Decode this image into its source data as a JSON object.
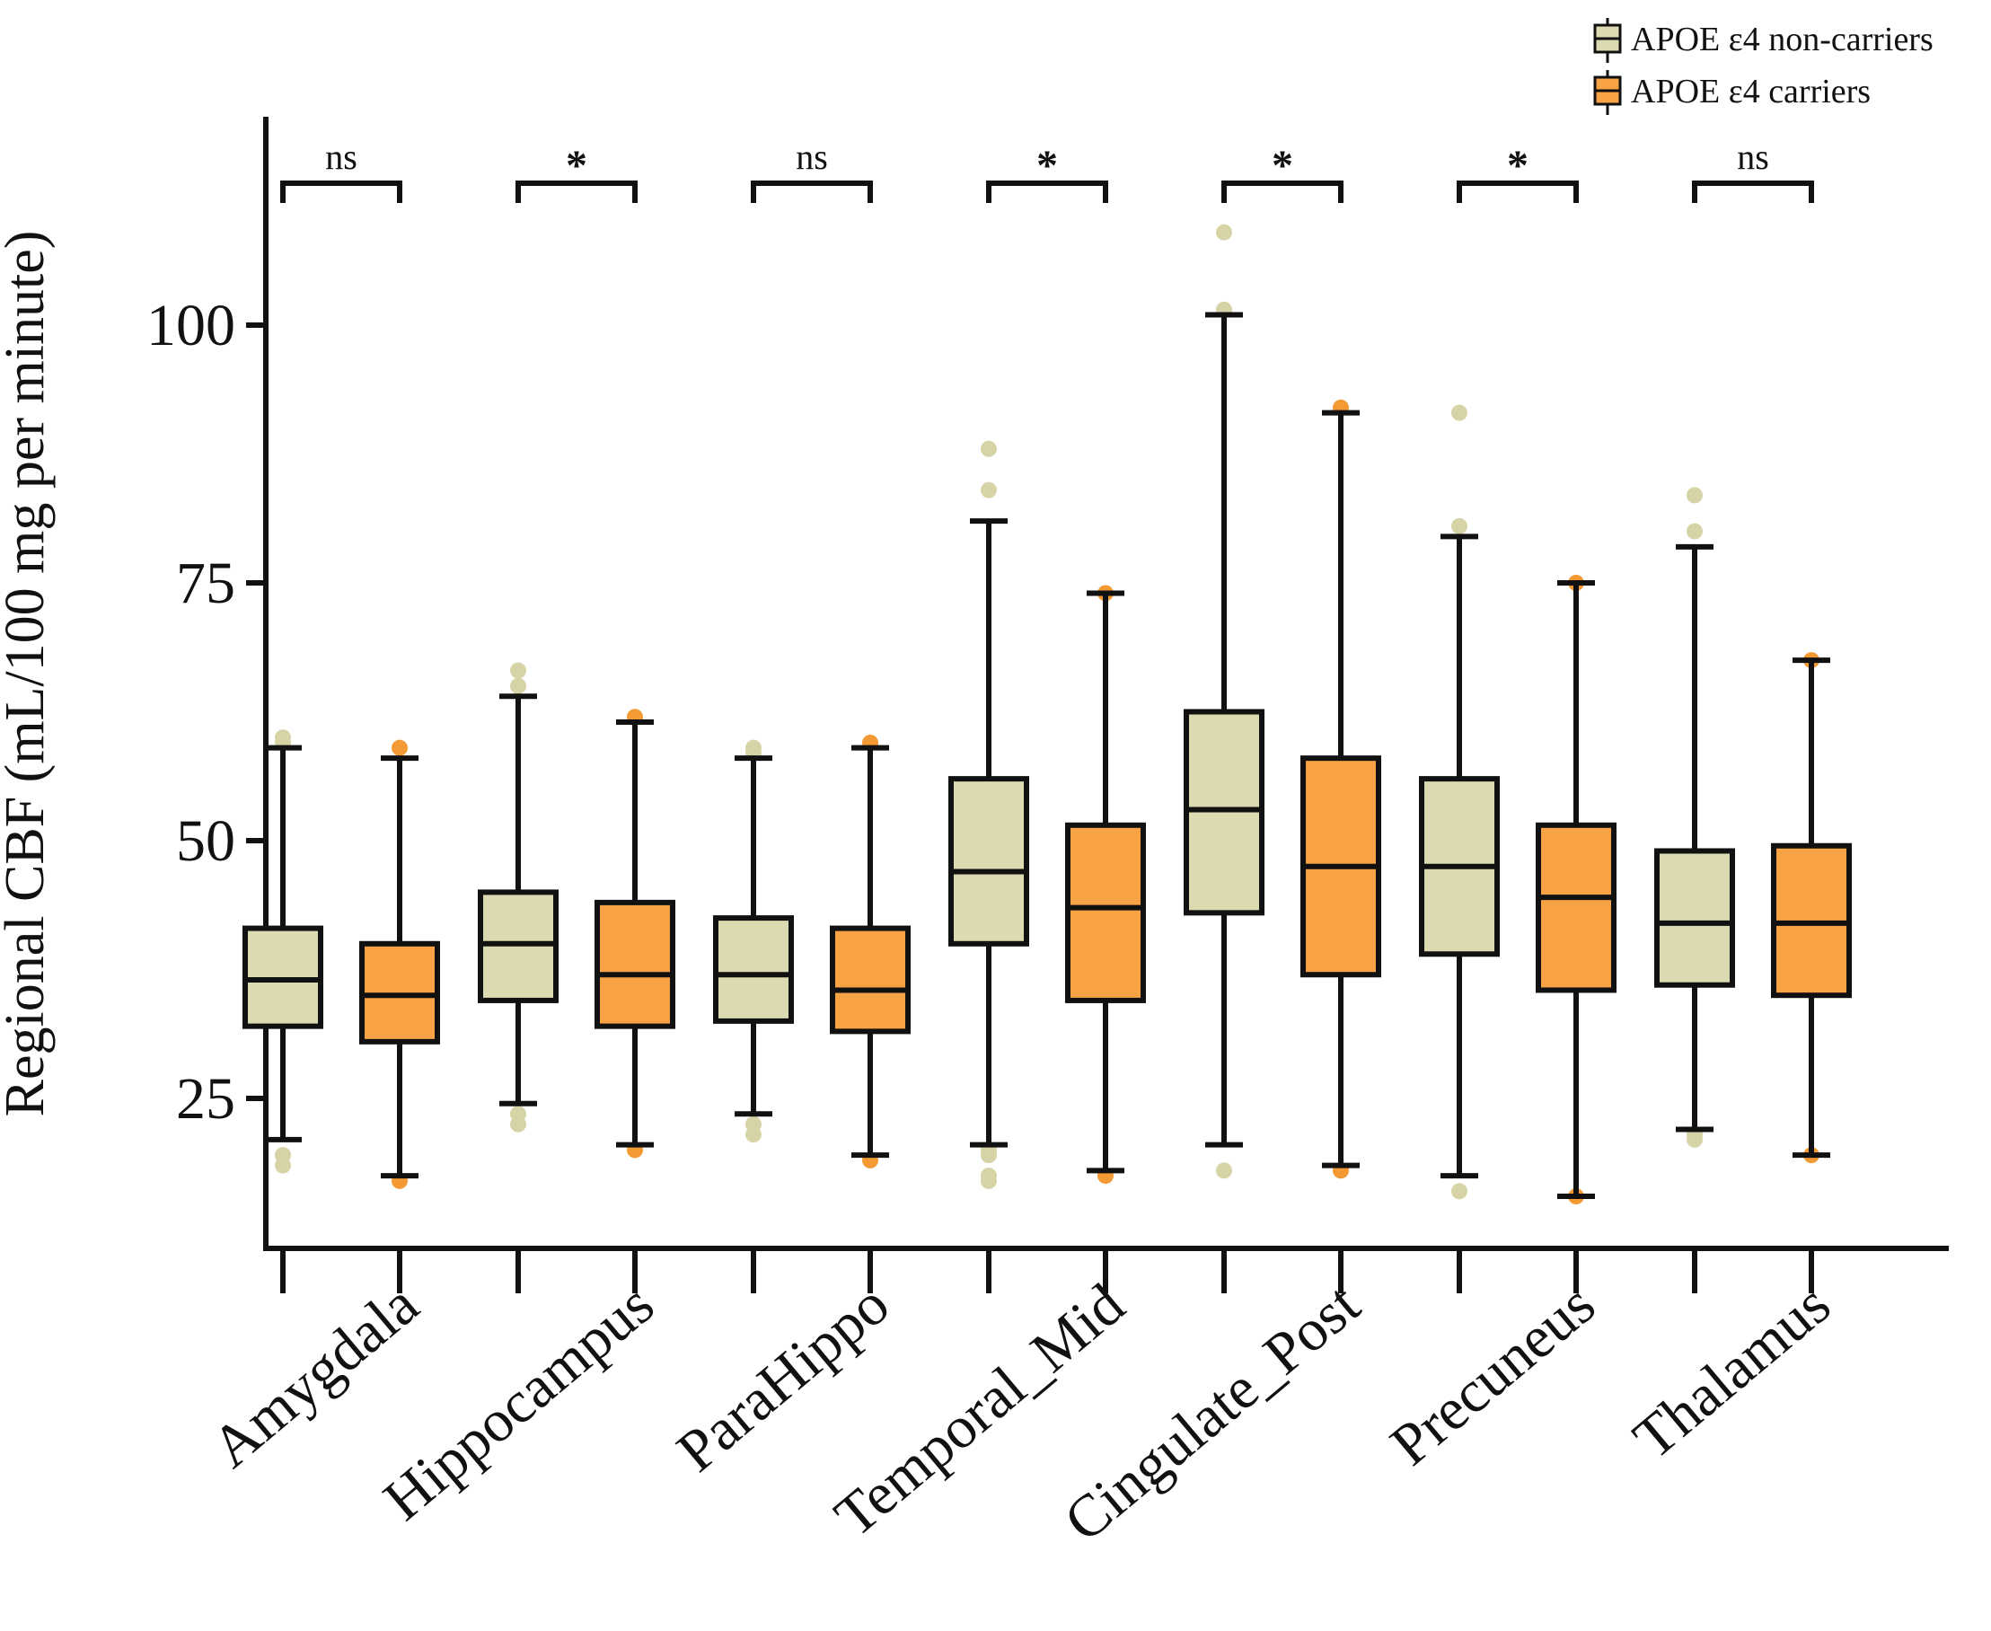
{
  "chart_data": {
    "type": "boxplot",
    "title": "",
    "ylabel": "Regional CBF (mL/100 mg per minute)",
    "xlabel": "",
    "ylim": [
      10,
      120
    ],
    "yticks": [
      25,
      50,
      75,
      100
    ],
    "legend_position": "top-right",
    "categories": [
      "Amygdala",
      "Hippocampus",
      "ParaHippo",
      "Temporal_Mid",
      "Cingulate_Post",
      "Precuneus",
      "Thalamus"
    ],
    "significance": [
      "ns",
      "*",
      "ns",
      "*",
      "*",
      "*",
      "ns"
    ],
    "series": [
      {
        "name": "APOE ε4 non-carriers",
        "color": "#dcdab0",
        "outlier_color": "#d6d3a6",
        "boxes": [
          {
            "whisker_low": 21,
            "q1": 32,
            "median": 36.5,
            "q3": 41.5,
            "whisker_high": 59,
            "outliers": [
              18.5,
              19.5,
              59.5,
              60
            ]
          },
          {
            "whisker_low": 24.5,
            "q1": 34.5,
            "median": 40,
            "q3": 45,
            "whisker_high": 64,
            "outliers": [
              22.5,
              23.5,
              65,
              66.5
            ]
          },
          {
            "whisker_low": 23.5,
            "q1": 32.5,
            "median": 37,
            "q3": 42.5,
            "whisker_high": 58,
            "outliers": [
              21.5,
              22.5,
              58.5,
              59
            ]
          },
          {
            "whisker_low": 20.5,
            "q1": 40,
            "median": 47,
            "q3": 56,
            "whisker_high": 81,
            "outliers": [
              17,
              17.5,
              19.5,
              20,
              84,
              88
            ]
          },
          {
            "whisker_low": 20.5,
            "q1": 43,
            "median": 53,
            "q3": 62.5,
            "whisker_high": 101,
            "outliers": [
              18,
              101.5,
              109
            ]
          },
          {
            "whisker_low": 17.5,
            "q1": 39,
            "median": 47.5,
            "q3": 56,
            "whisker_high": 79.5,
            "outliers": [
              16,
              80.5,
              91.5
            ]
          },
          {
            "whisker_low": 22,
            "q1": 36,
            "median": 42,
            "q3": 49,
            "whisker_high": 78.5,
            "outliers": [
              21,
              21.5,
              80,
              83.5
            ]
          }
        ]
      },
      {
        "name": "APOE ε4 carriers",
        "color": "#f7a244",
        "outlier_color": "#f39a34",
        "boxes": [
          {
            "whisker_low": 17.5,
            "q1": 30.5,
            "median": 35,
            "q3": 40,
            "whisker_high": 58,
            "outliers": [
              17,
              59
            ]
          },
          {
            "whisker_low": 20.5,
            "q1": 32,
            "median": 37,
            "q3": 44,
            "whisker_high": 61.5,
            "outliers": [
              20,
              62
            ]
          },
          {
            "whisker_low": 19.5,
            "q1": 31.5,
            "median": 35.5,
            "q3": 41.5,
            "whisker_high": 59,
            "outliers": [
              19,
              59.5
            ]
          },
          {
            "whisker_low": 18,
            "q1": 34.5,
            "median": 43.5,
            "q3": 51.5,
            "whisker_high": 74,
            "outliers": [
              17.5,
              74
            ]
          },
          {
            "whisker_low": 18.5,
            "q1": 37,
            "median": 47.5,
            "q3": 58,
            "whisker_high": 91.5,
            "outliers": [
              18,
              92
            ]
          },
          {
            "whisker_low": 15.5,
            "q1": 35.5,
            "median": 44.5,
            "q3": 51.5,
            "whisker_high": 75,
            "outliers": [
              15.5,
              75
            ]
          },
          {
            "whisker_low": 19.5,
            "q1": 35,
            "median": 42,
            "q3": 49.5,
            "whisker_high": 67.5,
            "outliers": [
              19.5,
              67.5
            ]
          }
        ]
      }
    ]
  }
}
